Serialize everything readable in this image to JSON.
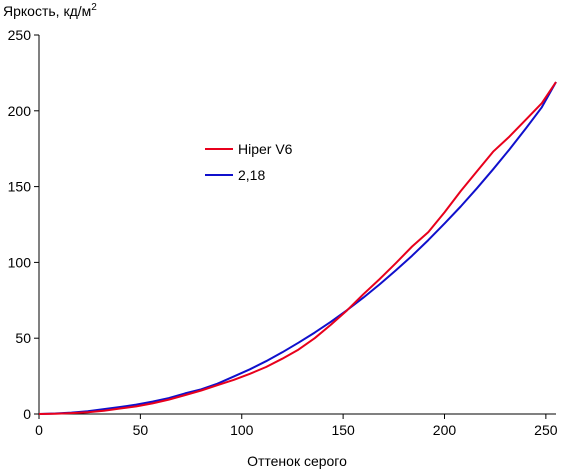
{
  "chart_data": {
    "type": "line",
    "ylabel": "Яркость, кд/м",
    "ylabel_sup": "2",
    "xlabel": "Оттенок серого",
    "xlim": [
      0,
      255
    ],
    "ylim": [
      0,
      250
    ],
    "xticks": [
      0,
      50,
      100,
      150,
      200,
      250
    ],
    "yticks": [
      0,
      50,
      100,
      150,
      200,
      250
    ],
    "grid": false,
    "legend_position": "center-left",
    "series": [
      {
        "name": "Hiper V6",
        "color": "#e8001c",
        "x": [
          0,
          8,
          16,
          24,
          32,
          40,
          48,
          56,
          64,
          72,
          80,
          88,
          96,
          104,
          112,
          120,
          128,
          136,
          144,
          152,
          160,
          168,
          176,
          184,
          192,
          200,
          208,
          216,
          224,
          232,
          240,
          248,
          255
        ],
        "y": [
          0,
          0.2,
          0.6,
          1.2,
          2.2,
          3.6,
          5.0,
          7.0,
          9.5,
          12.5,
          15.5,
          19.0,
          22.5,
          26.5,
          31.0,
          36.5,
          42.5,
          50.0,
          59.0,
          68.5,
          79.0,
          89.0,
          99.5,
          110.5,
          120.0,
          133.0,
          147.0,
          160.0,
          173.0,
          183.0,
          194.0,
          205.0,
          219.0
        ]
      },
      {
        "name": "2,18",
        "color": "#1010cc",
        "x": [
          0,
          8,
          16,
          24,
          32,
          40,
          48,
          56,
          64,
          72,
          80,
          88,
          96,
          104,
          112,
          120,
          128,
          136,
          144,
          152,
          160,
          168,
          176,
          184,
          192,
          200,
          208,
          216,
          224,
          232,
          240,
          248,
          255
        ],
        "y": [
          0,
          0.3,
          0.9,
          1.8,
          3.2,
          4.6,
          6.2,
          8.2,
          10.5,
          13.6,
          16.3,
          20.0,
          24.7,
          29.5,
          34.8,
          40.7,
          47.0,
          53.7,
          60.9,
          68.6,
          76.8,
          85.5,
          94.7,
          104.4,
          114.7,
          125.6,
          136.9,
          148.9,
          161.4,
          174.5,
          188.1,
          202.3,
          219.0
        ]
      }
    ]
  }
}
